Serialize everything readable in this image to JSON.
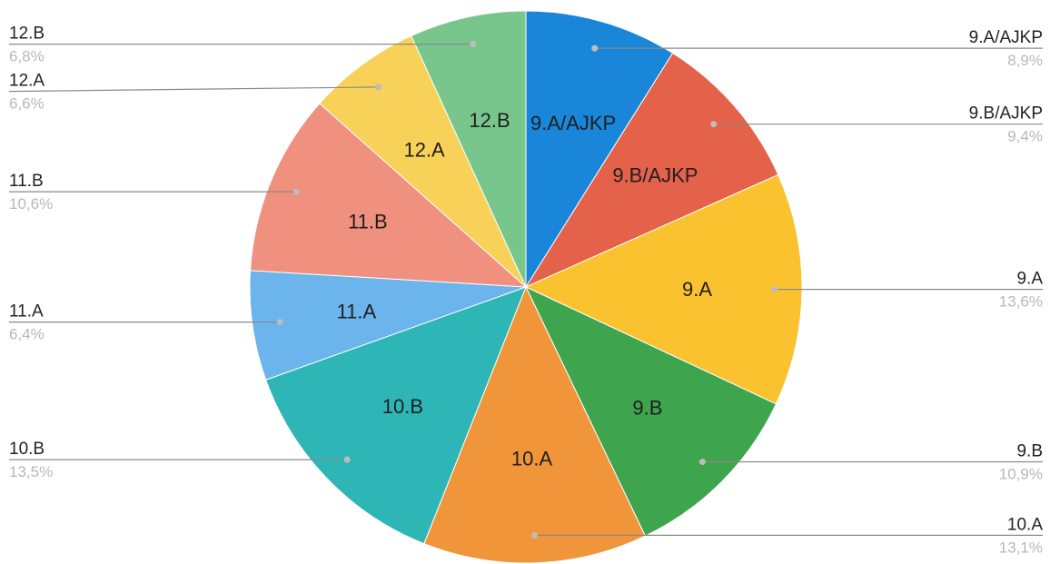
{
  "chart_data": {
    "type": "pie",
    "start": "top",
    "direction": "clockwise",
    "slices": [
      {
        "label": "9.A/AJKP",
        "value": 8.9,
        "percent_text": "8,9%",
        "color": "#1A86D9",
        "side": "right"
      },
      {
        "label": "9.B/AJKP",
        "value": 9.4,
        "percent_text": "9,4%",
        "color": "#E4614A",
        "side": "right"
      },
      {
        "label": "9.A",
        "value": 13.6,
        "percent_text": "13,6%",
        "color": "#F9C22E",
        "side": "right"
      },
      {
        "label": "9.B",
        "value": 10.9,
        "percent_text": "10,9%",
        "color": "#3FA44E",
        "side": "right"
      },
      {
        "label": "10.A",
        "value": 13.1,
        "percent_text": "13,1%",
        "color": "#F0953A",
        "side": "right"
      },
      {
        "label": "10.B",
        "value": 13.5,
        "percent_text": "13,5%",
        "color": "#2EB6B6",
        "side": "left"
      },
      {
        "label": "11.A",
        "value": 6.4,
        "percent_text": "6,4%",
        "color": "#6BB4EC",
        "side": "left"
      },
      {
        "label": "11.B",
        "value": 10.6,
        "percent_text": "10,6%",
        "color": "#F0907E",
        "side": "left"
      },
      {
        "label": "12.A",
        "value": 6.6,
        "percent_text": "6,6%",
        "color": "#F7D158",
        "side": "left"
      },
      {
        "label": "12.B",
        "value": 6.8,
        "percent_text": "6,8%",
        "color": "#78C68C",
        "side": "left"
      }
    ]
  }
}
